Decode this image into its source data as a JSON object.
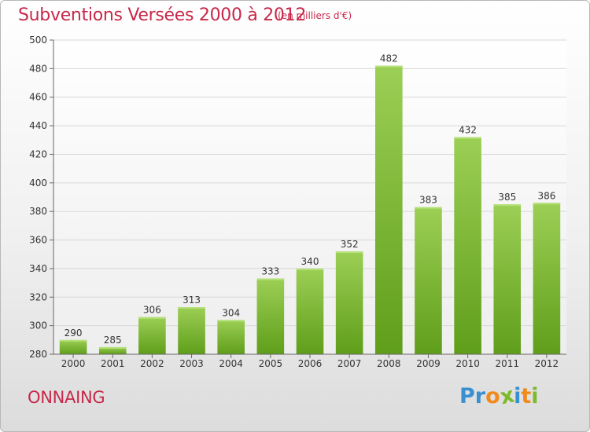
{
  "title": "Subventions Versées 2000 à 2012",
  "subtitle": "(en milliers d'€)",
  "commune": "ONNAING",
  "logo": {
    "text": "Proxiti",
    "letters": [
      {
        "char": "P",
        "color": "#3a8fd0"
      },
      {
        "char": "r",
        "color": "#3a8fd0"
      },
      {
        "char": "o",
        "color": "#f08a1c"
      },
      {
        "char": "x",
        "color": "#7cba2a"
      },
      {
        "char": "i",
        "color": "#3a8fd0"
      },
      {
        "char": "t",
        "color": "#f08a1c"
      },
      {
        "char": "i",
        "color": "#7cba2a"
      }
    ]
  },
  "colors": {
    "text_accent": "#c8284a",
    "bar_top": "#9ccf55",
    "bar_bottom": "#5f9e1a",
    "axis_text": "#333333",
    "grid": "#d8d8d8"
  },
  "chart_data": {
    "type": "bar",
    "categories": [
      "2000",
      "2001",
      "2002",
      "2003",
      "2004",
      "2005",
      "2006",
      "2007",
      "2008",
      "2009",
      "2010",
      "2011",
      "2012"
    ],
    "values": [
      290,
      285,
      306,
      313,
      304,
      333,
      340,
      352,
      482,
      383,
      432,
      385,
      386
    ],
    "ylim": [
      280,
      500
    ],
    "yticks": [
      280,
      300,
      320,
      340,
      360,
      380,
      400,
      420,
      440,
      460,
      480,
      500
    ],
    "grid": true,
    "data_labels": true
  }
}
